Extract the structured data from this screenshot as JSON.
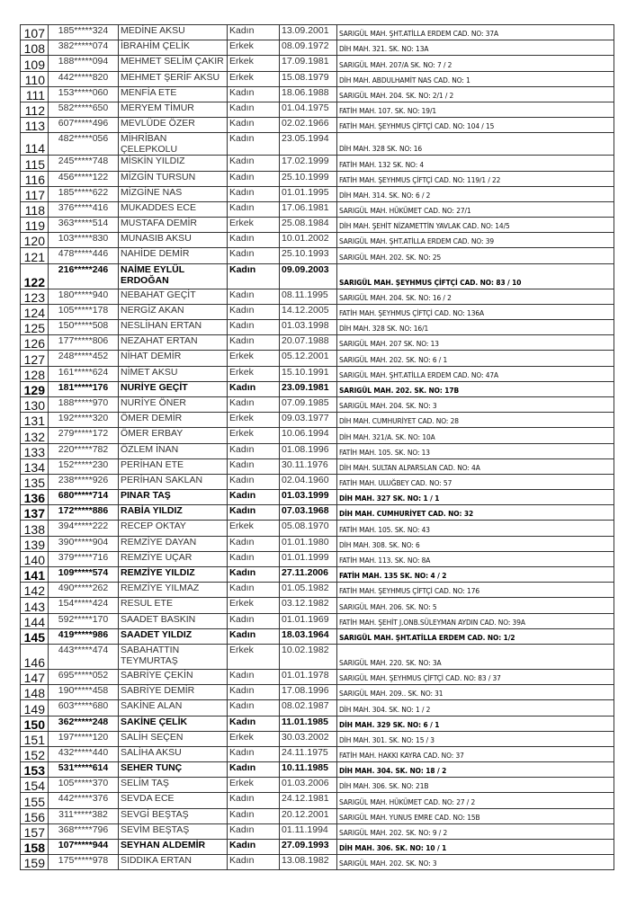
{
  "rows": [
    {
      "no": "107",
      "id": "185*****324",
      "name": "MEDİNE AKSU",
      "gender": "Kadın",
      "date": "13.09.2001",
      "address": "SARIGÜL MAH. ŞHT.ATİLLA ERDEM CAD. NO: 37A",
      "bold": false
    },
    {
      "no": "108",
      "id": "382*****074",
      "name": "İBRAHİM ÇELİK",
      "gender": "Erkek",
      "date": "08.09.1972",
      "address": "DİH MAH. 321. SK. NO: 13A",
      "bold": false
    },
    {
      "no": "109",
      "id": "188*****094",
      "name": "MEHMET SELİM ÇAKIR",
      "gender": "Erkek",
      "date": "17.09.1981",
      "address": "SARIGÜL MAH. 207/A SK. NO: 7 / 2",
      "bold": false
    },
    {
      "no": "110",
      "id": "442*****820",
      "name": "MEHMET ŞERİF AKSU",
      "gender": "Erkek",
      "date": "15.08.1979",
      "address": "DİH MAH. ABDULHAMİT NAS CAD. NO: 1",
      "bold": false
    },
    {
      "no": "111",
      "id": "153*****060",
      "name": "MENFİA ETE",
      "gender": "Kadın",
      "date": "18.06.1988",
      "address": "SARIGÜL MAH. 204. SK. NO: 2/1 / 2",
      "bold": false
    },
    {
      "no": "112",
      "id": "582*****650",
      "name": "MERYEM TİMUR",
      "gender": "Kadın",
      "date": "01.04.1975",
      "address": "FATİH MAH. 107. SK. NO: 19/1",
      "bold": false
    },
    {
      "no": "113",
      "id": "607*****496",
      "name": "MEVLÜDE ÖZER",
      "gender": "Kadın",
      "date": "02.02.1966",
      "address": "FATİH MAH. ŞEYHMUS ÇİFTÇİ CAD. NO: 104 / 15",
      "bold": false
    },
    {
      "no": "114",
      "id": "482*****056",
      "name": "MİHRİBAN ÇELEPKOLU",
      "gender": "Kadın",
      "date": "23.05.1994",
      "address": "DİH MAH. 328 SK. NO: 16",
      "bold": false
    },
    {
      "no": "115",
      "id": "245*****748",
      "name": "MİSKİN YILDIZ",
      "gender": "Kadın",
      "date": "17.02.1999",
      "address": "FATİH MAH. 132 SK. NO: 4",
      "bold": false
    },
    {
      "no": "116",
      "id": "456*****122",
      "name": "MİZGİN TURSUN",
      "gender": "Kadın",
      "date": "25.10.1999",
      "address": "FATİH MAH. ŞEYHMUS ÇİFTÇİ CAD. NO: 119/1 / 22",
      "bold": false
    },
    {
      "no": "117",
      "id": "185*****622",
      "name": "MİZGİNE NAS",
      "gender": "Kadın",
      "date": "01.01.1995",
      "address": "DİH MAH. 314. SK. NO: 6 / 2",
      "bold": false
    },
    {
      "no": "118",
      "id": "376*****416",
      "name": "MUKADDES ECE",
      "gender": "Kadın",
      "date": "17.06.1981",
      "address": "SARIGÜL MAH. HÜKÜMET CAD. NO: 27/1",
      "bold": false
    },
    {
      "no": "119",
      "id": "363*****514",
      "name": "MUSTAFA DEMİR",
      "gender": "Erkek",
      "date": "25.08.1984",
      "address": "DİH MAH. ŞEHİT NİZAMETTİN YAVLAK CAD. NO: 14/5",
      "bold": false
    },
    {
      "no": "120",
      "id": "103*****830",
      "name": "MUNASIB AKSU",
      "gender": "Kadın",
      "date": "10.01.2002",
      "address": "SARIGÜL MAH. ŞHT.ATİLLA ERDEM CAD. NO: 39",
      "bold": false
    },
    {
      "no": "121",
      "id": "478*****446",
      "name": "NAHİDE DEMİR",
      "gender": "Kadın",
      "date": "25.10.1993",
      "address": "SARIGÜL MAH. 202. SK. NO: 25",
      "bold": false
    },
    {
      "no": "122",
      "id": "216*****246",
      "name": "NAİME EYLÜL ERDOĞAN",
      "gender": "Kadın",
      "date": "09.09.2003",
      "address": "SARIGÜL MAH. ŞEYHMUS ÇİFTÇİ CAD. NO: 83 / 10",
      "bold": true,
      "tall": true
    },
    {
      "no": "123",
      "id": "180*****940",
      "name": "NEBAHAT GEÇİT",
      "gender": "Kadın",
      "date": "08.11.1995",
      "address": "SARIGÜL MAH. 204. SK. NO: 16 / 2",
      "bold": false
    },
    {
      "no": "124",
      "id": "105*****178",
      "name": "NERGİZ AKAN",
      "gender": "Kadın",
      "date": "14.12.2005",
      "address": "FATİH MAH. ŞEYHMUS ÇİFTÇİ CAD. NO: 136A",
      "bold": false
    },
    {
      "no": "125",
      "id": "150*****508",
      "name": "NESLİHAN ERTAN",
      "gender": "Kadın",
      "date": "01.03.1998",
      "address": "DİH MAH. 328 SK. NO: 16/1",
      "bold": false
    },
    {
      "no": "126",
      "id": "177*****806",
      "name": "NEZAHAT ERTAN",
      "gender": "Kadın",
      "date": "20.07.1988",
      "address": "SARIGÜL MAH. 207 SK. NO: 13",
      "bold": false
    },
    {
      "no": "127",
      "id": "248*****452",
      "name": "NİHAT DEMİR",
      "gender": "Erkek",
      "date": "05.12.2001",
      "address": "SARIGÜL MAH. 202. SK. NO: 6 / 1",
      "bold": false
    },
    {
      "no": "128",
      "id": "161*****624",
      "name": "NİMET AKSU",
      "gender": "Erkek",
      "date": "15.10.1991",
      "address": "SARIGÜL MAH. ŞHT.ATİLLA ERDEM CAD. NO: 47A",
      "bold": false
    },
    {
      "no": "129",
      "id": "181*****176",
      "name": "NURİYE GEÇİT",
      "gender": "Kadın",
      "date": "23.09.1981",
      "address": "SARIGÜL MAH. 202. SK. NO: 17B",
      "bold": true
    },
    {
      "no": "130",
      "id": "188*****970",
      "name": "NURİYE ÖNER",
      "gender": "Kadın",
      "date": "07.09.1985",
      "address": "SARIGÜL MAH. 204. SK. NO: 3",
      "bold": false
    },
    {
      "no": "131",
      "id": "192*****320",
      "name": "ÖMER DEMİR",
      "gender": "Erkek",
      "date": "09.03.1977",
      "address": "DİH MAH. CUMHURİYET CAD. NO: 28",
      "bold": false
    },
    {
      "no": "132",
      "id": "279*****172",
      "name": "ÖMER ERBAY",
      "gender": "Erkek",
      "date": "10.06.1994",
      "address": "DİH MAH. 321/A. SK. NO: 10A",
      "bold": false
    },
    {
      "no": "133",
      "id": "220*****782",
      "name": "ÖZLEM İNAN",
      "gender": "Kadın",
      "date": "01.08.1996",
      "address": "FATİH MAH. 105. SK. NO: 13",
      "bold": false
    },
    {
      "no": "134",
      "id": "152*****230",
      "name": "PERİHAN ETE",
      "gender": "Kadın",
      "date": "30.11.1976",
      "address": "DİH MAH. SULTAN ALPARSLAN CAD. NO: 4A",
      "bold": false
    },
    {
      "no": "135",
      "id": "238*****926",
      "name": "PERİHAN SAKLAN",
      "gender": "Kadın",
      "date": "02.04.1960",
      "address": "FATİH MAH. ULUĞBEY CAD. NO: 57",
      "bold": false
    },
    {
      "no": "136",
      "id": "680*****714",
      "name": "PINAR TAŞ",
      "gender": "Kadın",
      "date": "01.03.1999",
      "address": "DİH MAH. 327 SK. NO: 1 / 1",
      "bold": true
    },
    {
      "no": "137",
      "id": "172*****886",
      "name": "RABİA YILDIZ",
      "gender": "Kadın",
      "date": "07.03.1968",
      "address": "DİH MAH. CUMHURİYET CAD. NO: 32",
      "bold": true
    },
    {
      "no": "138",
      "id": "394*****222",
      "name": "RECEP OKTAY",
      "gender": "Erkek",
      "date": "05.08.1970",
      "address": "FATİH MAH. 105. SK. NO: 43",
      "bold": false
    },
    {
      "no": "139",
      "id": "390*****904",
      "name": "REMZİYE DAYAN",
      "gender": "Kadın",
      "date": "01.01.1980",
      "address": "DİH MAH. 308. SK. NO: 6",
      "bold": false
    },
    {
      "no": "140",
      "id": "379*****716",
      "name": "REMZİYE UÇAR",
      "gender": "Kadın",
      "date": "01.01.1999",
      "address": "FATİH MAH. 113. SK. NO: 8A",
      "bold": false
    },
    {
      "no": "141",
      "id": "109*****574",
      "name": "REMZİYE YILDIZ",
      "gender": "Kadın",
      "date": "27.11.2006",
      "address": "FATİH MAH. 135 SK. NO: 4 / 2",
      "bold": true
    },
    {
      "no": "142",
      "id": "490*****262",
      "name": "REMZİYE YILMAZ",
      "gender": "Kadın",
      "date": "01.05.1982",
      "address": "FATİH MAH. ŞEYHMUS ÇİFTÇİ CAD. NO: 176",
      "bold": false
    },
    {
      "no": "143",
      "id": "154*****424",
      "name": "RESUL ETE",
      "gender": "Erkek",
      "date": "03.12.1982",
      "address": "SARIGÜL MAH. 206. SK. NO: 5",
      "bold": false
    },
    {
      "no": "144",
      "id": "592*****170",
      "name": "SAADET BASKIN",
      "gender": "Kadın",
      "date": "01.01.1969",
      "address": "FATİH MAH. ŞEHİT J.ONB.SÜLEYMAN AYDIN CAD. NO: 39A",
      "bold": false
    },
    {
      "no": "145",
      "id": "419*****986",
      "name": "SAADET YILDIZ",
      "gender": "Kadın",
      "date": "18.03.1964",
      "address": "SARIGÜL MAH. ŞHT.ATİLLA ERDEM CAD. NO: 1/2",
      "bold": true
    },
    {
      "no": "146",
      "id": "443*****474",
      "name": "SABAHATTIN TEYMURTAŞ",
      "gender": "Erkek",
      "date": "10.02.1982",
      "address": "SARIGÜL MAH. 220. SK. NO: 3A",
      "bold": false,
      "tall": true
    },
    {
      "no": "147",
      "id": "695*****052",
      "name": "SABRİYE ÇEKİN",
      "gender": "Kadın",
      "date": "01.01.1978",
      "address": "SARIGÜL MAH. ŞEYHMUS ÇİFTÇİ CAD. NO: 83 / 37",
      "bold": false
    },
    {
      "no": "148",
      "id": "190*****458",
      "name": "SABRİYE DEMİR",
      "gender": "Kadın",
      "date": "17.08.1996",
      "address": "SARIGÜL MAH. 209.. SK. NO: 31",
      "bold": false
    },
    {
      "no": "149",
      "id": "603*****680",
      "name": "SAKİNE ALAN",
      "gender": "Kadın",
      "date": "08.02.1987",
      "address": "DİH MAH. 304. SK. NO: 1 / 2",
      "bold": false
    },
    {
      "no": "150",
      "id": "362*****248",
      "name": "SAKİNE ÇELİK",
      "gender": "Kadın",
      "date": "11.01.1985",
      "address": "DİH MAH. 329 SK. NO: 6 / 1",
      "bold": true
    },
    {
      "no": "151",
      "id": "197*****120",
      "name": "SALİH SEÇEN",
      "gender": "Erkek",
      "date": "30.03.2002",
      "address": "DİH MAH. 301. SK. NO: 15 / 3",
      "bold": false
    },
    {
      "no": "152",
      "id": "432*****440",
      "name": "SALİHA AKSU",
      "gender": "Kadın",
      "date": "24.11.1975",
      "address": "FATİH MAH. HAKKI KAYRA CAD. NO: 37",
      "bold": false
    },
    {
      "no": "153",
      "id": "531*****614",
      "name": "SEHER TUNÇ",
      "gender": "Kadın",
      "date": "10.11.1985",
      "address": "DİH MAH. 304. SK. NO: 18 / 2",
      "bold": true
    },
    {
      "no": "154",
      "id": "105*****370",
      "name": "SELİM TAŞ",
      "gender": "Erkek",
      "date": "01.03.2006",
      "address": "DİH MAH. 306. SK. NO: 21B",
      "bold": false
    },
    {
      "no": "155",
      "id": "442*****376",
      "name": "SEVDA ECE",
      "gender": "Kadın",
      "date": "24.12.1981",
      "address": "SARIGÜL MAH. HÜKÜMET CAD. NO: 27 / 2",
      "bold": false
    },
    {
      "no": "156",
      "id": "311*****382",
      "name": "SEVGİ BEŞTAŞ",
      "gender": "Kadın",
      "date": "20.12.2001",
      "address": "SARIGÜL MAH. YUNUS EMRE CAD. NO: 15B",
      "bold": false
    },
    {
      "no": "157",
      "id": "368*****796",
      "name": "SEVİM BEŞTAŞ",
      "gender": "Kadın",
      "date": "01.11.1994",
      "address": "SARIGÜL MAH. 202. SK. NO: 9 / 2",
      "bold": false
    },
    {
      "no": "158",
      "id": "107*****944",
      "name": "SEYHAN ALDEMİR",
      "gender": "Kadın",
      "date": "27.09.1993",
      "address": "DİH MAH. 306. SK. NO: 10 / 1",
      "bold": true
    },
    {
      "no": "159",
      "id": "175*****978",
      "name": "SIDDIKA ERTAN",
      "gender": "Kadın",
      "date": "13.08.1982",
      "address": "SARIGÜL MAH. 202. SK. NO: 3",
      "bold": false
    }
  ]
}
